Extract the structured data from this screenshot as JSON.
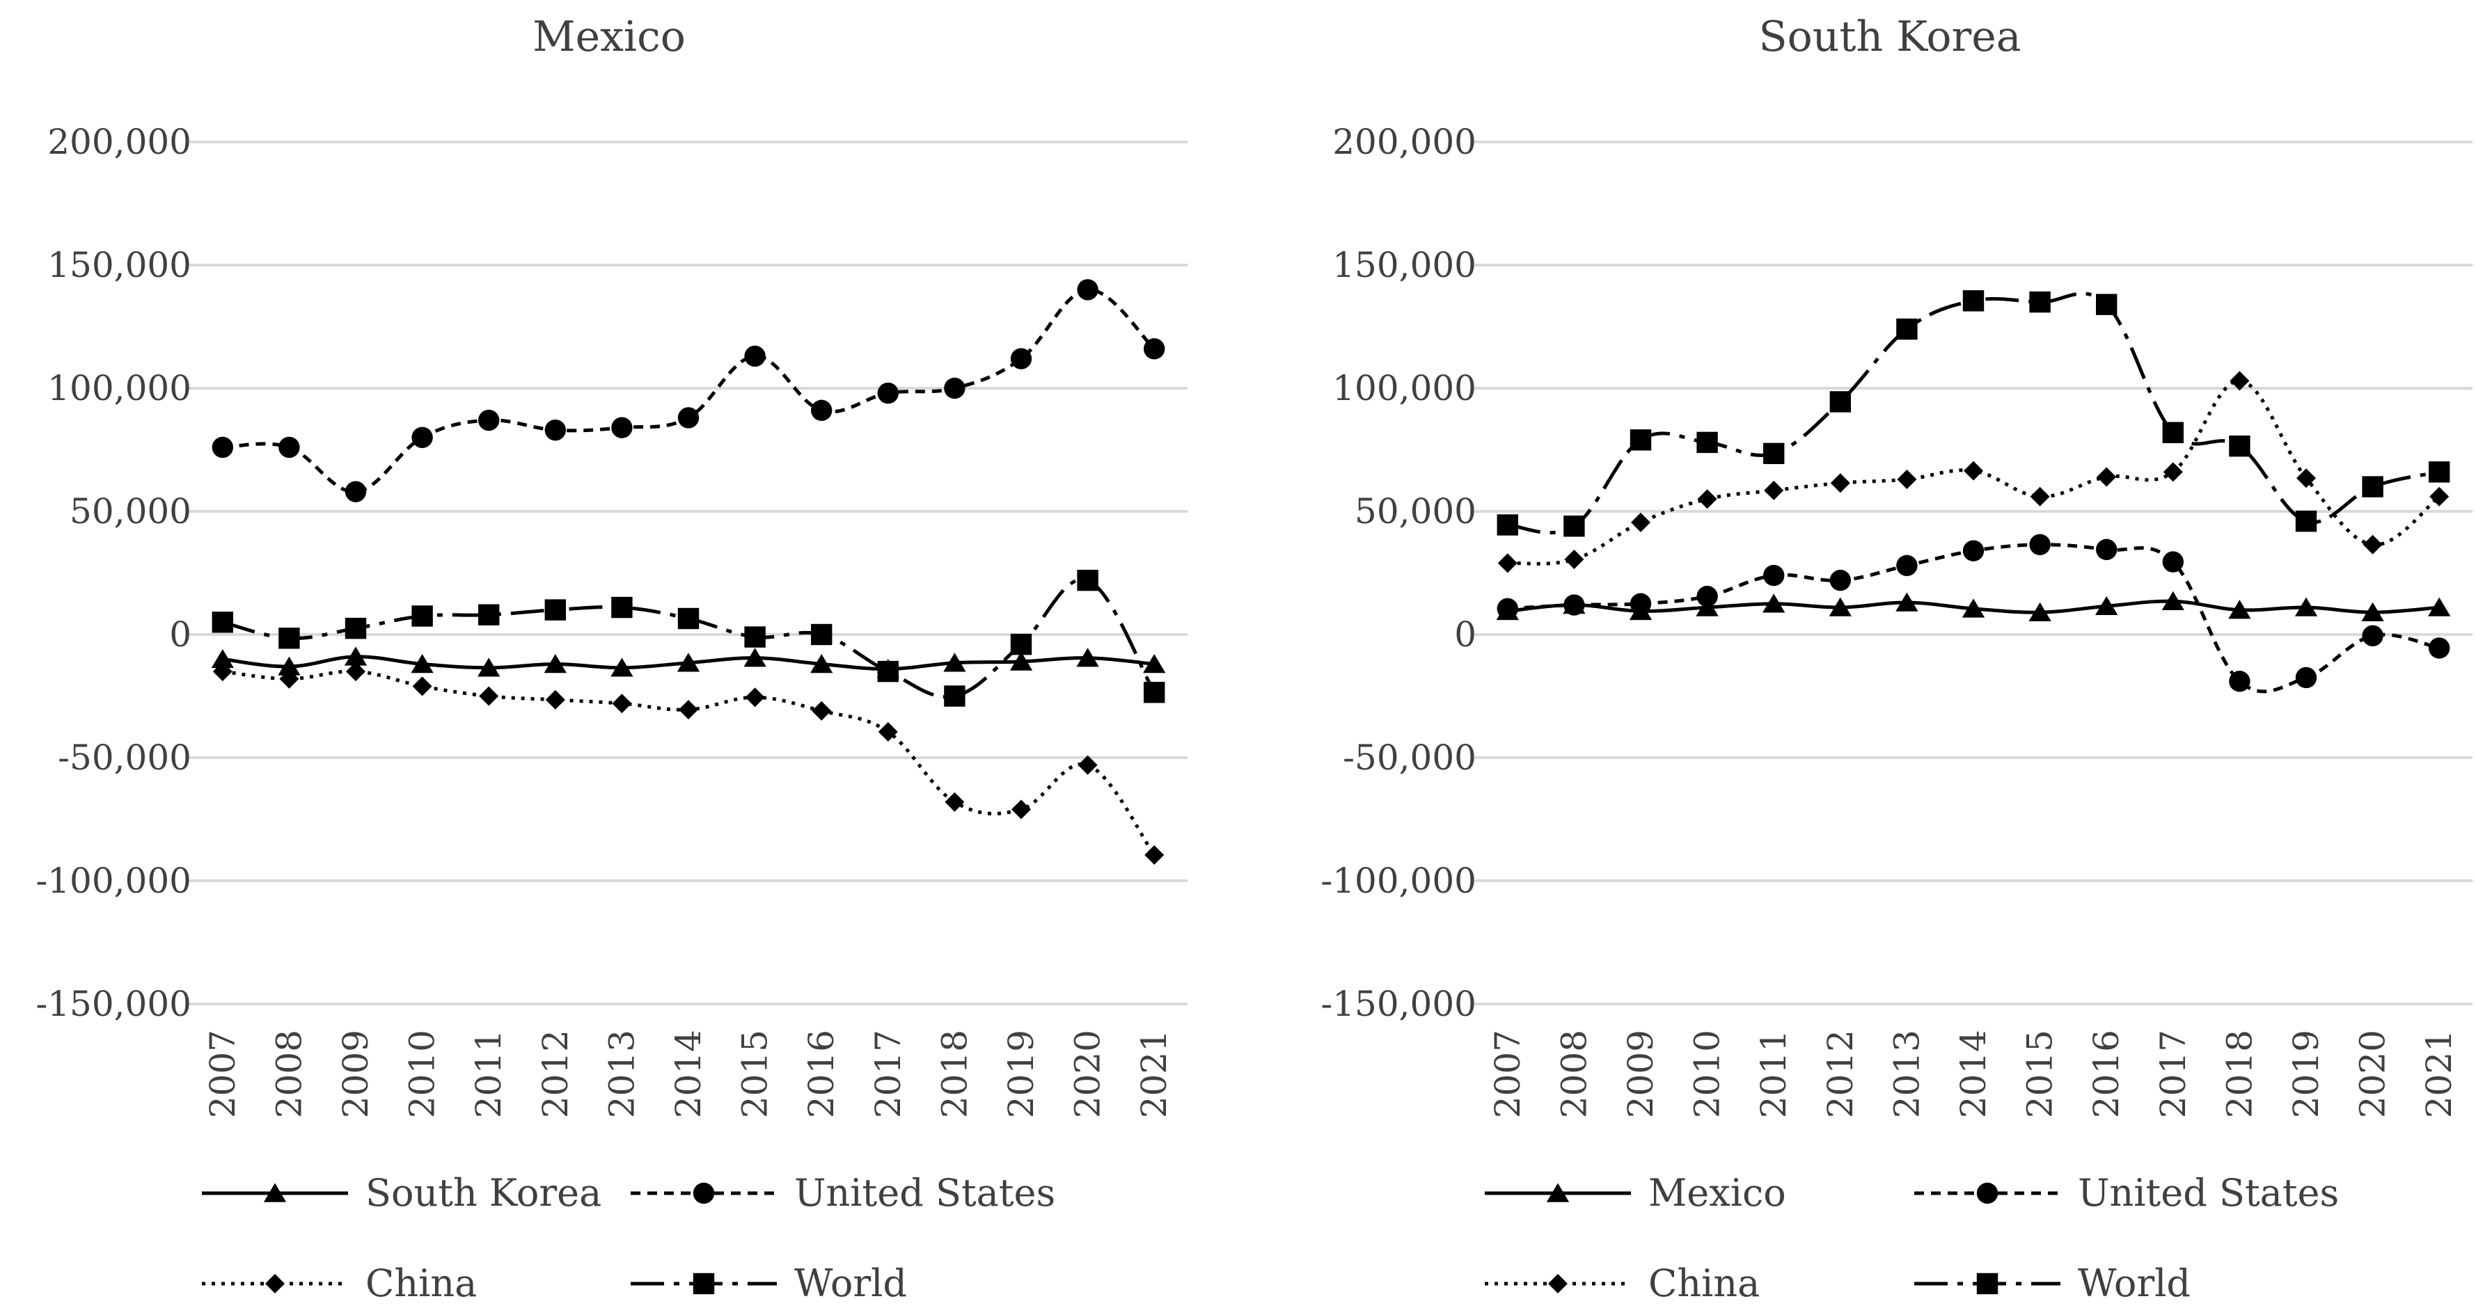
{
  "chart_data": [
    {
      "type": "line",
      "title": "Mexico",
      "xlabel": "",
      "ylabel": "",
      "ylim": [
        -150000,
        200000
      ],
      "yticks": [
        200000,
        150000,
        100000,
        50000,
        0,
        -50000,
        -100000,
        -150000
      ],
      "ytick_labels": [
        "200,000",
        "150,000",
        "100,000",
        "50,000",
        "0",
        "-50,000",
        "-100,000",
        "-150,000"
      ],
      "categories": [
        "2007",
        "2008",
        "2009",
        "2010",
        "2011",
        "2012",
        "2013",
        "2014",
        "2015",
        "2016",
        "2017",
        "2018",
        "2019",
        "2020",
        "2021"
      ],
      "grid": true,
      "legend": "bottom",
      "series": [
        {
          "name": "South Korea",
          "style": "solid",
          "marker": "triangle",
          "values": [
            -10000,
            -13000,
            -9000,
            -12000,
            -13500,
            -12000,
            -13500,
            -11500,
            -9500,
            -12000,
            -14000,
            -11500,
            -11000,
            -9500,
            -12000
          ]
        },
        {
          "name": "United States",
          "style": "short-dash",
          "marker": "circle",
          "values": [
            76000,
            76000,
            58000,
            80000,
            87000,
            83000,
            84000,
            88000,
            113000,
            91000,
            98000,
            100000,
            112000,
            140000,
            116000
          ]
        },
        {
          "name": "China",
          "style": "dotted",
          "marker": "diamond",
          "values": [
            -15000,
            -18000,
            -15000,
            -21000,
            -25000,
            -26500,
            -28000,
            -30500,
            -25500,
            -31000,
            -39500,
            -68000,
            -71000,
            -53000,
            -89500
          ]
        },
        {
          "name": "World",
          "style": "long-dash-dot",
          "marker": "square",
          "values": [
            5000,
            -1500,
            2500,
            7500,
            8000,
            10000,
            11000,
            6500,
            -1000,
            0,
            -15000,
            -25000,
            -4000,
            22000,
            -23500
          ]
        }
      ]
    },
    {
      "type": "line",
      "title": "South Korea",
      "xlabel": "",
      "ylabel": "",
      "ylim": [
        -150000,
        200000
      ],
      "yticks": [
        200000,
        150000,
        100000,
        50000,
        0,
        -50000,
        -100000,
        -150000
      ],
      "ytick_labels": [
        "200,000",
        "150,000",
        "100,000",
        "50,000",
        "0",
        "-50,000",
        "-100,000",
        "-150,000"
      ],
      "categories": [
        "2007",
        "2008",
        "2009",
        "2010",
        "2011",
        "2012",
        "2013",
        "2014",
        "2015",
        "2016",
        "2017",
        "2018",
        "2019",
        "2020",
        "2021"
      ],
      "grid": true,
      "legend": "bottom",
      "series": [
        {
          "name": "Mexico",
          "style": "solid",
          "marker": "triangle",
          "values": [
            9500,
            12000,
            9500,
            11000,
            12500,
            11000,
            13000,
            10500,
            9000,
            11500,
            13500,
            10000,
            11000,
            9000,
            11000
          ]
        },
        {
          "name": "United States",
          "style": "short-dash",
          "marker": "circle",
          "values": [
            10500,
            12000,
            12500,
            15500,
            24000,
            22000,
            28000,
            34000,
            36500,
            34500,
            29500,
            -19000,
            -17500,
            -500,
            -5500
          ]
        },
        {
          "name": "China",
          "style": "dotted",
          "marker": "diamond",
          "values": [
            29000,
            30500,
            45500,
            55000,
            58500,
            61500,
            63000,
            66500,
            56000,
            64000,
            66000,
            103000,
            63500,
            36500,
            56000
          ]
        },
        {
          "name": "World",
          "style": "long-dash-dot",
          "marker": "square",
          "values": [
            44500,
            44000,
            79000,
            78000,
            73500,
            94500,
            124000,
            135500,
            135000,
            134000,
            82000,
            76500,
            46000,
            60000,
            66000
          ]
        }
      ]
    }
  ]
}
